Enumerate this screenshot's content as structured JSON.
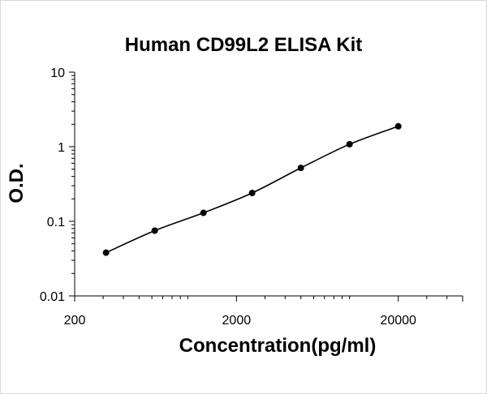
{
  "chart_data": {
    "type": "line",
    "title": "Human CD99L2 ELISA Kit",
    "xlabel": "Concentration(pg/ml)",
    "ylabel": "O.D.",
    "x_scale": "log",
    "y_scale": "log",
    "xlim": [
      200,
      50000
    ],
    "ylim": [
      0.01,
      10
    ],
    "x_ticks": [
      "200",
      "2000",
      "20000"
    ],
    "y_ticks": [
      "10",
      "1",
      "0.1",
      "0.01"
    ],
    "grid": false,
    "legend": "none",
    "series": [
      {
        "x": [
          312.5,
          625,
          1250,
          2500,
          5000,
          10000,
          20000
        ],
        "y": [
          0.038,
          0.075,
          0.13,
          0.24,
          0.52,
          1.08,
          1.88
        ]
      }
    ],
    "colors": {
      "line": "#000000",
      "marker": "#000000",
      "axis": "#000000"
    }
  }
}
